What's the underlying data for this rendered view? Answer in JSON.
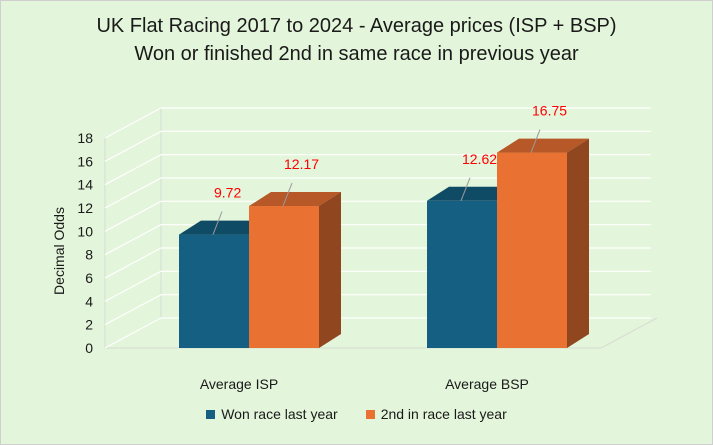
{
  "chart_data": {
    "type": "bar",
    "title": "UK Flat Racing 2017 to 2024 - Average prices (ISP + BSP)",
    "subtitle": "Won or finished 2nd in same race in previous year",
    "xlabel": "",
    "ylabel": "Decimal Odds",
    "ylim": [
      0,
      18
    ],
    "yticks": [
      "0",
      "2",
      "4",
      "6",
      "8",
      "10",
      "12",
      "14",
      "16",
      "18"
    ],
    "categories": [
      "Average ISP",
      "Average BSP"
    ],
    "series": [
      {
        "name": "Won race last year",
        "values": [
          9.72,
          12.62
        ],
        "labels": [
          "9.72",
          "12.62"
        ],
        "color": "#156082"
      },
      {
        "name": "2nd in race last year",
        "values": [
          12.17,
          16.75
        ],
        "labels": [
          "12.17",
          "16.75"
        ],
        "color": "#e97132"
      }
    ],
    "data_label_color": "#ff0000",
    "legend": "bottom",
    "grid": true,
    "style": "3d-column"
  }
}
